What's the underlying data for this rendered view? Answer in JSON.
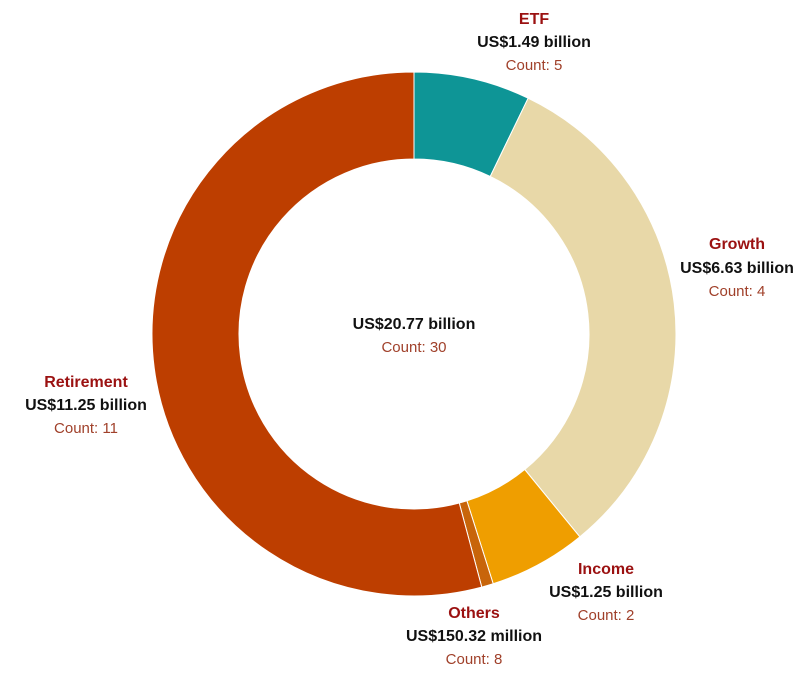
{
  "colors": {
    "label_name": "#9b1111",
    "label_value": "#111111",
    "label_count": "#a0402a"
  },
  "chart_data": {
    "type": "pie",
    "subtype": "donut",
    "center": {
      "total_label": "US$20.77 billion",
      "count_label": "Count: 30"
    },
    "slices": [
      {
        "name": "ETF",
        "value_label": "US$1.49 billion",
        "value_billion": 1.49,
        "count_label": "Count: 5",
        "count": 5,
        "color": "#0e9596"
      },
      {
        "name": "Growth",
        "value_label": "US$6.63 billion",
        "value_billion": 6.63,
        "count_label": "Count: 4",
        "count": 4,
        "color": "#e8d8a8"
      },
      {
        "name": "Income",
        "value_label": "US$1.25 billion",
        "value_billion": 1.25,
        "count_label": "Count: 2",
        "count": 2,
        "color": "#ef9e00"
      },
      {
        "name": "Others",
        "value_label": "US$150.32 million",
        "value_billion": 0.15032,
        "count_label": "Count: 8",
        "count": 8,
        "color": "#c8650a"
      },
      {
        "name": "Retirement",
        "value_label": "US$11.25 billion",
        "value_billion": 11.25,
        "count_label": "Count: 11",
        "count": 11,
        "color": "#bd3e00"
      }
    ]
  }
}
